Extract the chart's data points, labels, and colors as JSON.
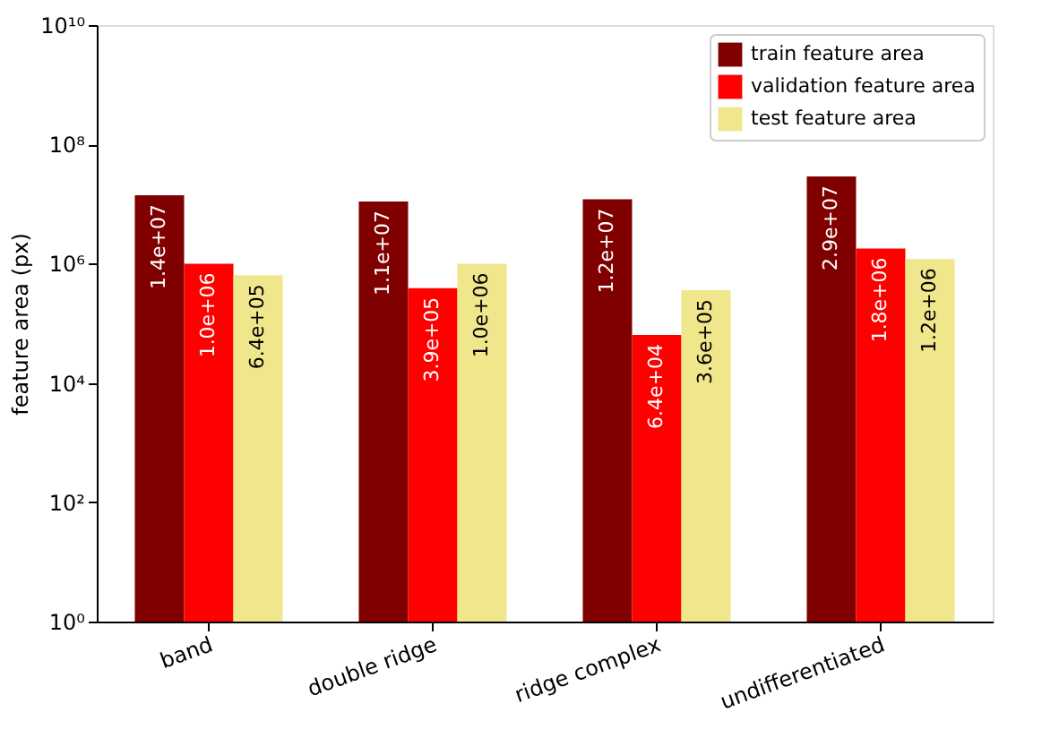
{
  "chart_data": {
    "type": "bar",
    "ylabel": "feature area (px)",
    "categories": [
      "band",
      "double ridge",
      "ridge complex",
      "undifferentiated"
    ],
    "series": [
      {
        "name": "train feature area",
        "color": "#800000",
        "values": [
          14000000,
          11000000,
          12000000,
          29000000
        ],
        "value_labels": [
          "1.4e+07",
          "1.1e+07",
          "1.2e+07",
          "2.9e+07"
        ]
      },
      {
        "name": "validation feature area",
        "color": "#ff0000",
        "values": [
          1000000,
          390000,
          64000,
          1800000
        ],
        "value_labels": [
          "1.0e+06",
          "3.9e+05",
          "6.4e+04",
          "1.8e+06"
        ]
      },
      {
        "name": "test feature area",
        "color": "#f0e68c",
        "values": [
          640000,
          1000000,
          360000,
          1200000
        ],
        "value_labels": [
          "6.4e+05",
          "1.0e+06",
          "3.6e+05",
          "1.2e+06"
        ]
      }
    ],
    "log": true,
    "ylim": [
      1,
      10000000000
    ],
    "yticks": [
      {
        "value": 1,
        "label": "10⁰"
      },
      {
        "value": 100,
        "label": "10²"
      },
      {
        "value": 10000,
        "label": "10⁴"
      },
      {
        "value": 1000000,
        "label": "10⁶"
      },
      {
        "value": 100000000,
        "label": "10⁸"
      },
      {
        "value": 10000000000,
        "label": "10¹⁰"
      }
    ],
    "legend": "top right",
    "grid": false
  }
}
